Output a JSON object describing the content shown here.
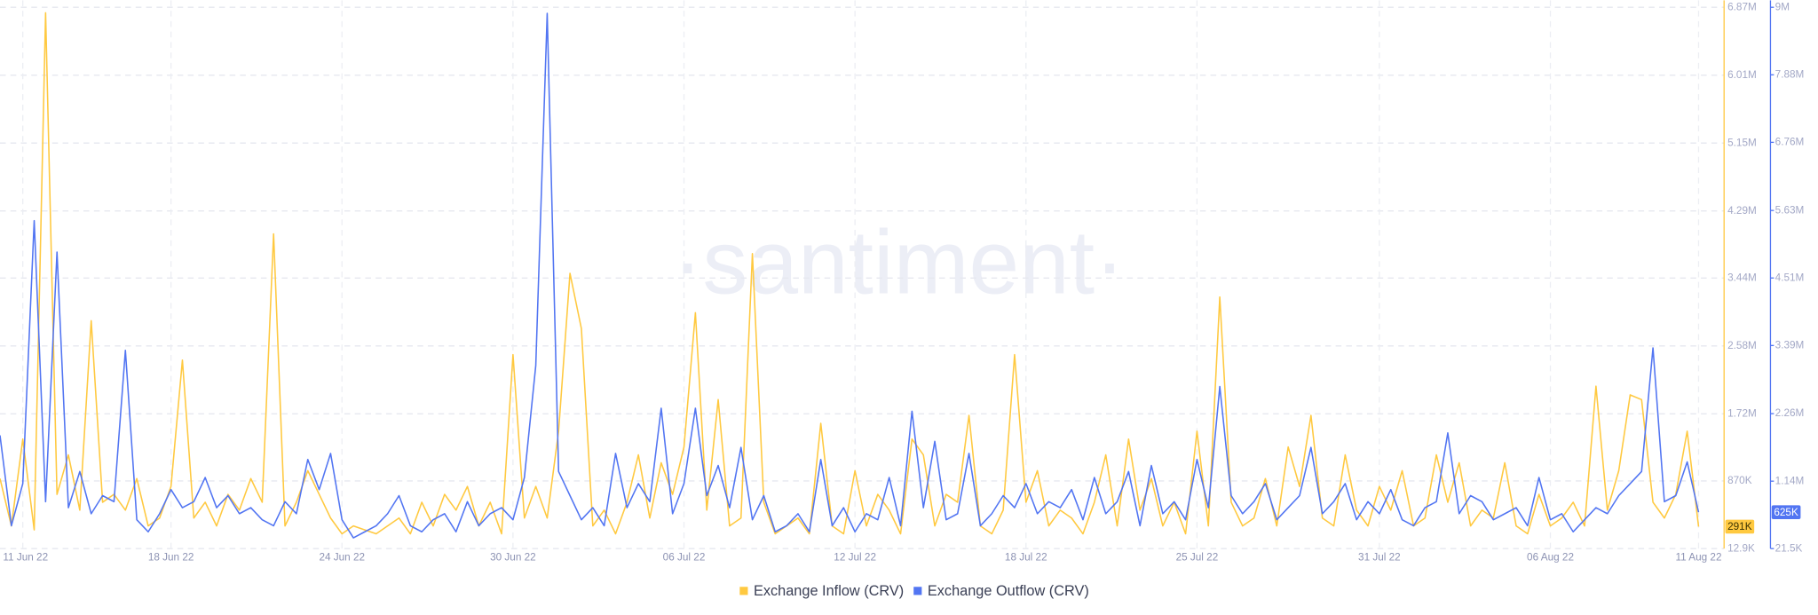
{
  "chart_data": {
    "type": "line",
    "watermark": "·santiment·",
    "categories": [
      null,
      null,
      "11 Jun 22",
      null,
      null,
      null,
      null,
      null,
      null,
      null,
      null,
      null,
      null,
      null,
      null,
      "18 Jun 22",
      null,
      null,
      null,
      null,
      null,
      null,
      null,
      null,
      null,
      null,
      null,
      null,
      null,
      null,
      "24 Jun 22",
      null,
      null,
      null,
      null,
      null,
      null,
      null,
      null,
      null,
      null,
      null,
      null,
      null,
      null,
      "30 Jun 22",
      null,
      null,
      null,
      null,
      null,
      null,
      null,
      null,
      null,
      null,
      null,
      null,
      null,
      null,
      "06 Jul 22",
      null,
      null,
      null,
      null,
      null,
      null,
      null,
      null,
      null,
      null,
      null,
      null,
      null,
      null,
      "12 Jul 22",
      null,
      null,
      null,
      null,
      null,
      null,
      null,
      null,
      null,
      null,
      null,
      null,
      null,
      null,
      "18 Jul 22",
      null,
      null,
      null,
      null,
      null,
      null,
      null,
      null,
      null,
      null,
      null,
      null,
      null,
      null,
      "25 Jul 22",
      null,
      null,
      null,
      null,
      null,
      null,
      null,
      null,
      null,
      null,
      null,
      null,
      null,
      null,
      null,
      "31 Jul 22",
      null,
      null,
      null,
      null,
      null,
      null,
      null,
      null,
      null,
      null,
      null,
      null,
      null,
      null,
      "06 Aug 22",
      null,
      null,
      null,
      null,
      null,
      null,
      null,
      null,
      null,
      null,
      null,
      null,
      "11 Aug 22"
    ],
    "series": [
      {
        "name": "Exchange Inflow (CRV)",
        "color": "#ffc940",
        "axis": "y",
        "last_label": "291K",
        "values": [
          900000,
          300000,
          1400000,
          250000,
          6800000,
          700000,
          1200000,
          500000,
          2900000,
          600000,
          700000,
          500000,
          900000,
          300000,
          400000,
          800000,
          2400000,
          400000,
          600000,
          300000,
          700000,
          500000,
          900000,
          600000,
          4000000,
          300000,
          600000,
          1000000,
          700000,
          400000,
          200000,
          300000,
          250000,
          200000,
          300000,
          400000,
          200000,
          600000,
          300000,
          700000,
          500000,
          800000,
          300000,
          600000,
          200000,
          2470000,
          400000,
          800000,
          400000,
          1500000,
          3500000,
          2800000,
          300000,
          500000,
          200000,
          600000,
          1200000,
          400000,
          1100000,
          700000,
          1300000,
          3000000,
          500000,
          1900000,
          300000,
          400000,
          3750000,
          600000,
          200000,
          300000,
          400000,
          200000,
          1600000,
          300000,
          200000,
          1000000,
          300000,
          700000,
          500000,
          200000,
          1400000,
          1200000,
          300000,
          700000,
          600000,
          1700000,
          300000,
          200000,
          500000,
          2470000,
          600000,
          1000000,
          300000,
          500000,
          400000,
          200000,
          600000,
          1200000,
          300000,
          1400000,
          500000,
          900000,
          300000,
          600000,
          200000,
          1500000,
          300000,
          3200000,
          600000,
          300000,
          400000,
          900000,
          300000,
          1300000,
          800000,
          1700000,
          400000,
          300000,
          1200000,
          500000,
          300000,
          800000,
          500000,
          1000000,
          300000,
          400000,
          1200000,
          600000,
          1100000,
          300000,
          500000,
          400000,
          1100000,
          300000,
          200000,
          700000,
          300000,
          400000,
          600000,
          300000,
          2070000,
          500000,
          1000000,
          1960000,
          1900000,
          600000,
          400000,
          700000,
          1500000,
          291000
        ]
      },
      {
        "name": "Exchange Outflow (CRV)",
        "color": "#5275f2",
        "axis": "y2",
        "last_label": "625K",
        "values": [
          1900000,
          400000,
          1100000,
          5460000,
          800000,
          4940000,
          700000,
          1300000,
          600000,
          900000,
          800000,
          3310000,
          500000,
          300000,
          600000,
          1000000,
          700000,
          800000,
          1200000,
          700000,
          900000,
          600000,
          700000,
          500000,
          400000,
          800000,
          600000,
          1500000,
          1000000,
          1600000,
          500000,
          200000,
          300000,
          400000,
          600000,
          900000,
          400000,
          300000,
          500000,
          600000,
          300000,
          800000,
          400000,
          600000,
          700000,
          500000,
          1200000,
          3060000,
          8900000,
          1300000,
          900000,
          500000,
          700000,
          400000,
          1600000,
          700000,
          1100000,
          800000,
          2350000,
          600000,
          1100000,
          2350000,
          900000,
          1400000,
          700000,
          1700000,
          500000,
          900000,
          300000,
          400000,
          600000,
          300000,
          1500000,
          400000,
          700000,
          300000,
          600000,
          500000,
          1200000,
          400000,
          2300000,
          700000,
          1800000,
          500000,
          600000,
          1600000,
          400000,
          600000,
          900000,
          700000,
          1100000,
          600000,
          800000,
          700000,
          1000000,
          500000,
          1200000,
          600000,
          800000,
          1300000,
          400000,
          1400000,
          600000,
          800000,
          500000,
          1500000,
          700000,
          2710000,
          900000,
          600000,
          800000,
          1100000,
          500000,
          700000,
          900000,
          1700000,
          600000,
          800000,
          1100000,
          500000,
          800000,
          600000,
          1000000,
          500000,
          400000,
          700000,
          800000,
          1940000,
          600000,
          900000,
          800000,
          500000,
          600000,
          700000,
          400000,
          1200000,
          500000,
          600000,
          300000,
          500000,
          700000,
          600000,
          900000,
          1100000,
          1300000,
          3350000,
          800000,
          900000,
          1460000,
          625000
        ]
      }
    ],
    "ylim": [
      12900,
      6870000
    ],
    "yticks": [
      {
        "value": 12900,
        "label": "12.9K"
      },
      {
        "value": 870000,
        "label": "870K"
      },
      {
        "value": 1720000,
        "label": "1.72M"
      },
      {
        "value": 2580000,
        "label": "2.58M"
      },
      {
        "value": 3440000,
        "label": "3.44M"
      },
      {
        "value": 4290000,
        "label": "4.29M"
      },
      {
        "value": 5150000,
        "label": "5.15M"
      },
      {
        "value": 6010000,
        "label": "6.01M"
      },
      {
        "value": 6870000,
        "label": "6.87M"
      }
    ],
    "y2lim": [
      21500,
      9000000
    ],
    "y2ticks": [
      {
        "value": 21500,
        "label": "21.5K"
      },
      {
        "value": 1140000,
        "label": "1.14M"
      },
      {
        "value": 2260000,
        "label": "2.26M"
      },
      {
        "value": 3390000,
        "label": "3.39M"
      },
      {
        "value": 4510000,
        "label": "4.51M"
      },
      {
        "value": 5630000,
        "label": "5.63M"
      },
      {
        "value": 6760000,
        "label": "6.76M"
      },
      {
        "value": 7880000,
        "label": "7.88M"
      },
      {
        "value": 9000000,
        "label": "9M"
      }
    ],
    "grid": true,
    "legend": "bottom"
  }
}
